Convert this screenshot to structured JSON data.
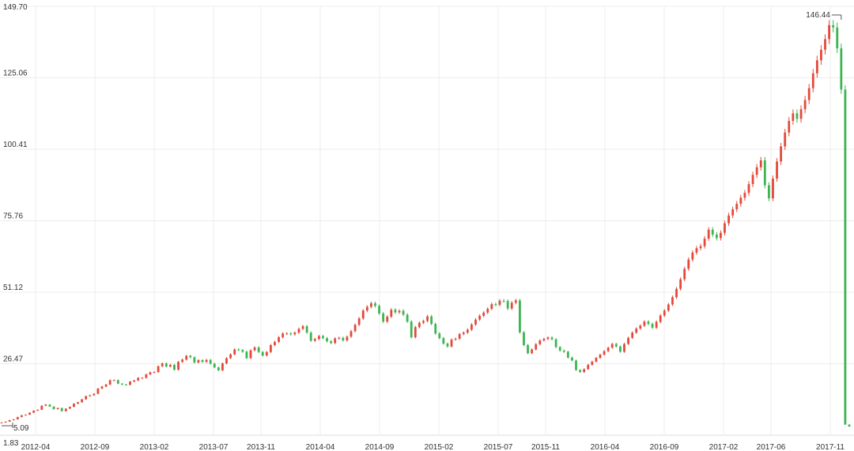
{
  "colors": {
    "up": "#e24a3b",
    "down": "#3cb550",
    "grid": "#ececec",
    "axis": "#dddddd",
    "text": "#333333",
    "marker": "#555555"
  },
  "chart_data": {
    "type": "candlestick",
    "grid": true,
    "y_axis_position": "left",
    "y_ticks": [
      "149.70",
      "125.06",
      "100.41",
      "75.76",
      "51.12",
      "26.47",
      "1.83"
    ],
    "ylim": [
      1.83,
      149.7
    ],
    "x_ticks": [
      "2012-04",
      "2012-09",
      "2013-02",
      "2013-07",
      "2013-11",
      "2014-04",
      "2014-09",
      "2015-02",
      "2015-07",
      "2015-11",
      "2016-04",
      "2016-09",
      "2017-02",
      "2017-06",
      "2017-11"
    ],
    "xlim": [
      "2012-01",
      "2018-01"
    ],
    "annotations": [
      {
        "label": "146.44",
        "x": "2017-12",
        "y": 146.44,
        "type": "max"
      },
      {
        "label": "5.09",
        "x": "2012-01",
        "y": 5.09,
        "type": "min"
      }
    ],
    "series": [
      {
        "interval": "week",
        "start": "2012-01",
        "close": [
          6.2,
          6.5,
          7.0,
          7.3,
          8.1,
          8.7,
          8.9,
          9.6,
          10.3,
          10.6,
          12.0,
          12.4,
          11.7,
          10.8,
          11.2,
          10.1,
          11.0,
          11.6,
          12.7,
          13.2,
          14.2,
          15.3,
          15.6,
          16.1,
          17.9,
          18.6,
          19.3,
          20.8,
          20.8,
          19.6,
          19.3,
          19.2,
          20.3,
          20.7,
          21.6,
          21.6,
          22.8,
          23.5,
          23.6,
          25.6,
          26.6,
          25.5,
          26.1,
          24.4,
          27.1,
          27.9,
          29.2,
          28.7,
          26.9,
          27.7,
          27.1,
          27.8,
          26.5,
          25.2,
          24.2,
          26.6,
          28.4,
          29.7,
          31.4,
          31.2,
          30.6,
          28.4,
          31.1,
          32.1,
          30.5,
          29.3,
          30.5,
          32.9,
          34.0,
          35.6,
          36.9,
          36.9,
          36.6,
          37.2,
          38.5,
          39.4,
          37.2,
          34.4,
          35.0,
          36.0,
          35.3,
          34.2,
          33.6,
          35.2,
          35.4,
          34.5,
          35.8,
          37.7,
          39.9,
          42.1,
          44.8,
          46.1,
          47.3,
          46.4,
          43.8,
          41.0,
          42.7,
          45.1,
          44.2,
          44.7,
          43.4,
          41.0,
          35.6,
          39.1,
          40.6,
          41.2,
          42.8,
          40.2,
          36.9,
          35.3,
          33.4,
          32.4,
          34.8,
          35.1,
          36.7,
          37.2,
          38.2,
          40.0,
          41.7,
          43.0,
          44.1,
          45.4,
          47.0,
          46.8,
          48.2,
          48.1,
          45.5,
          47.5,
          48.3,
          37.3,
          32.9,
          30.1,
          31.4,
          33.2,
          34.5,
          35.0,
          35.5,
          34.9,
          32.2,
          31.0,
          30.6,
          28.6,
          27.6,
          24.3,
          23.6,
          24.6,
          26.1,
          27.2,
          28.5,
          29.6,
          30.8,
          32.0,
          33.3,
          32.4,
          30.6,
          33.3,
          35.4,
          37.2,
          38.6,
          39.6,
          41.0,
          40.2,
          38.9,
          40.9,
          43.1,
          44.8,
          46.9,
          49.4,
          52.3,
          55.6,
          59.2,
          62.4,
          64.8,
          66.3,
          67.0,
          69.6,
          72.7,
          71.0,
          69.8,
          71.6,
          74.9,
          77.6,
          79.7,
          81.6,
          83.7,
          85.4,
          88.4,
          91.6,
          94.2,
          96.6,
          88.0,
          83.5,
          90.3,
          96.2,
          101.4,
          106.2,
          110.2,
          112.8,
          110.9,
          114.2,
          117.4,
          121.5,
          126.6,
          131.1,
          134.7,
          138.4,
          143.2,
          142.4,
          135.2,
          121.0,
          5.5,
          4.8
        ]
      }
    ]
  }
}
